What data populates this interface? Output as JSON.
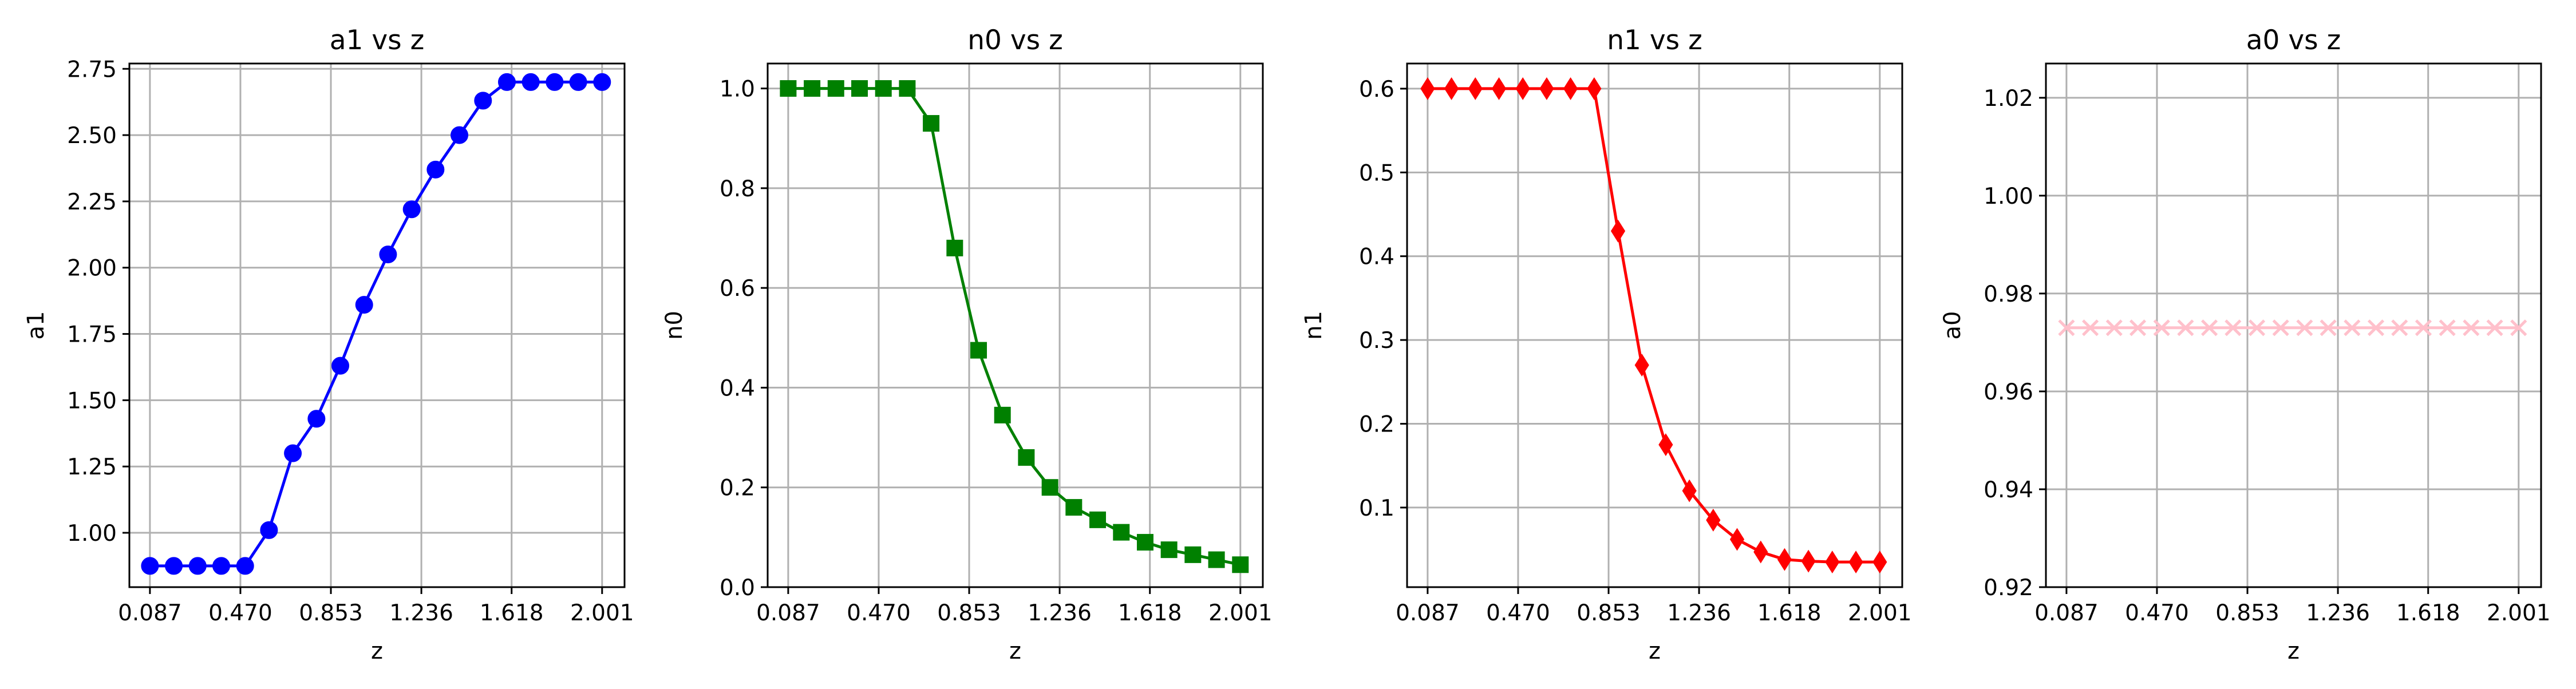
{
  "figure": {
    "background": "#ffffff"
  },
  "chart_data": [
    {
      "type": "line",
      "title": "a1 vs z",
      "xlabel": "z",
      "ylabel": "a1",
      "xlim": [
        0.0,
        2.096
      ],
      "ylim": [
        0.795,
        2.77
      ],
      "xticks": [
        0.087,
        0.47,
        0.853,
        1.236,
        1.618,
        2.001
      ],
      "xtick_labels": [
        "0.087",
        "0.470",
        "0.853",
        "1.236",
        "1.618",
        "2.001"
      ],
      "yticks": [
        1.0,
        1.25,
        1.5,
        1.75,
        2.0,
        2.25,
        2.5,
        2.75
      ],
      "ytick_labels": [
        "1.00",
        "1.25",
        "1.50",
        "1.75",
        "2.00",
        "2.25",
        "2.50",
        "2.75"
      ],
      "grid": true,
      "series": [
        {
          "color": "#0000ff",
          "marker": "circle",
          "x": [
            0.087,
            0.188,
            0.289,
            0.389,
            0.49,
            0.591,
            0.692,
            0.792,
            0.893,
            0.994,
            1.095,
            1.195,
            1.296,
            1.397,
            1.497,
            1.598,
            1.699,
            1.8,
            1.9,
            2.001
          ],
          "y": [
            0.875,
            0.875,
            0.875,
            0.875,
            0.875,
            1.01,
            1.3,
            1.43,
            1.63,
            1.86,
            2.05,
            2.22,
            2.37,
            2.5,
            2.63,
            2.7,
            2.7,
            2.7,
            2.7,
            2.7
          ]
        }
      ]
    },
    {
      "type": "line",
      "title": "n0 vs z",
      "xlabel": "z",
      "ylabel": "n0",
      "xlim": [
        0.0,
        2.096
      ],
      "ylim": [
        0.0,
        1.05
      ],
      "xticks": [
        0.087,
        0.47,
        0.853,
        1.236,
        1.618,
        2.001
      ],
      "xtick_labels": [
        "0.087",
        "0.470",
        "0.853",
        "1.236",
        "1.618",
        "2.001"
      ],
      "yticks": [
        0.0,
        0.2,
        0.4,
        0.6,
        0.8,
        1.0
      ],
      "ytick_labels": [
        "0.0",
        "0.2",
        "0.4",
        "0.6",
        "0.8",
        "1.0"
      ],
      "grid": true,
      "series": [
        {
          "color": "#008000",
          "marker": "square",
          "x": [
            0.087,
            0.188,
            0.289,
            0.389,
            0.49,
            0.591,
            0.692,
            0.792,
            0.893,
            0.994,
            1.095,
            1.195,
            1.296,
            1.397,
            1.497,
            1.598,
            1.699,
            1.8,
            1.9,
            2.001
          ],
          "y": [
            1.0,
            1.0,
            1.0,
            1.0,
            1.0,
            1.0,
            0.93,
            0.68,
            0.475,
            0.345,
            0.26,
            0.2,
            0.16,
            0.135,
            0.11,
            0.09,
            0.075,
            0.065,
            0.055,
            0.045
          ]
        }
      ]
    },
    {
      "type": "line",
      "title": "n1 vs z",
      "xlabel": "z",
      "ylabel": "n1",
      "xlim": [
        0.0,
        2.096
      ],
      "ylim": [
        0.005,
        0.63
      ],
      "xticks": [
        0.087,
        0.47,
        0.853,
        1.236,
        1.618,
        2.001
      ],
      "xtick_labels": [
        "0.087",
        "0.470",
        "0.853",
        "1.236",
        "1.618",
        "2.001"
      ],
      "yticks": [
        0.1,
        0.2,
        0.3,
        0.4,
        0.5,
        0.6
      ],
      "ytick_labels": [
        "0.1",
        "0.2",
        "0.3",
        "0.4",
        "0.5",
        "0.6"
      ],
      "grid": true,
      "series": [
        {
          "color": "#ff0000",
          "marker": "diamond",
          "x": [
            0.087,
            0.188,
            0.289,
            0.389,
            0.49,
            0.591,
            0.692,
            0.792,
            0.893,
            0.994,
            1.095,
            1.195,
            1.296,
            1.397,
            1.497,
            1.598,
            1.699,
            1.8,
            1.9,
            2.001
          ],
          "y": [
            0.6,
            0.6,
            0.6,
            0.6,
            0.6,
            0.6,
            0.6,
            0.6,
            0.43,
            0.27,
            0.175,
            0.12,
            0.085,
            0.062,
            0.047,
            0.038,
            0.036,
            0.035,
            0.035,
            0.035
          ]
        }
      ]
    },
    {
      "type": "line",
      "title": "a0 vs z",
      "xlabel": "z",
      "ylabel": "a0",
      "xlim": [
        0.0,
        2.096
      ],
      "ylim": [
        0.92,
        1.027
      ],
      "xticks": [
        0.087,
        0.47,
        0.853,
        1.236,
        1.618,
        2.001
      ],
      "xtick_labels": [
        "0.087",
        "0.470",
        "0.853",
        "1.236",
        "1.618",
        "2.001"
      ],
      "yticks": [
        0.92,
        0.94,
        0.96,
        0.98,
        1.0,
        1.02
      ],
      "ytick_labels": [
        "0.92",
        "0.94",
        "0.96",
        "0.98",
        "1.00",
        "1.02"
      ],
      "grid": true,
      "series": [
        {
          "color": "#ffc0cb",
          "marker": "x",
          "x": [
            0.087,
            0.188,
            0.289,
            0.389,
            0.49,
            0.591,
            0.692,
            0.792,
            0.893,
            0.994,
            1.095,
            1.195,
            1.296,
            1.397,
            1.497,
            1.598,
            1.699,
            1.8,
            1.9,
            2.001
          ],
          "y": [
            0.973,
            0.973,
            0.973,
            0.973,
            0.973,
            0.973,
            0.973,
            0.973,
            0.973,
            0.973,
            0.973,
            0.973,
            0.973,
            0.973,
            0.973,
            0.973,
            0.973,
            0.973,
            0.973,
            0.973
          ]
        }
      ]
    }
  ]
}
